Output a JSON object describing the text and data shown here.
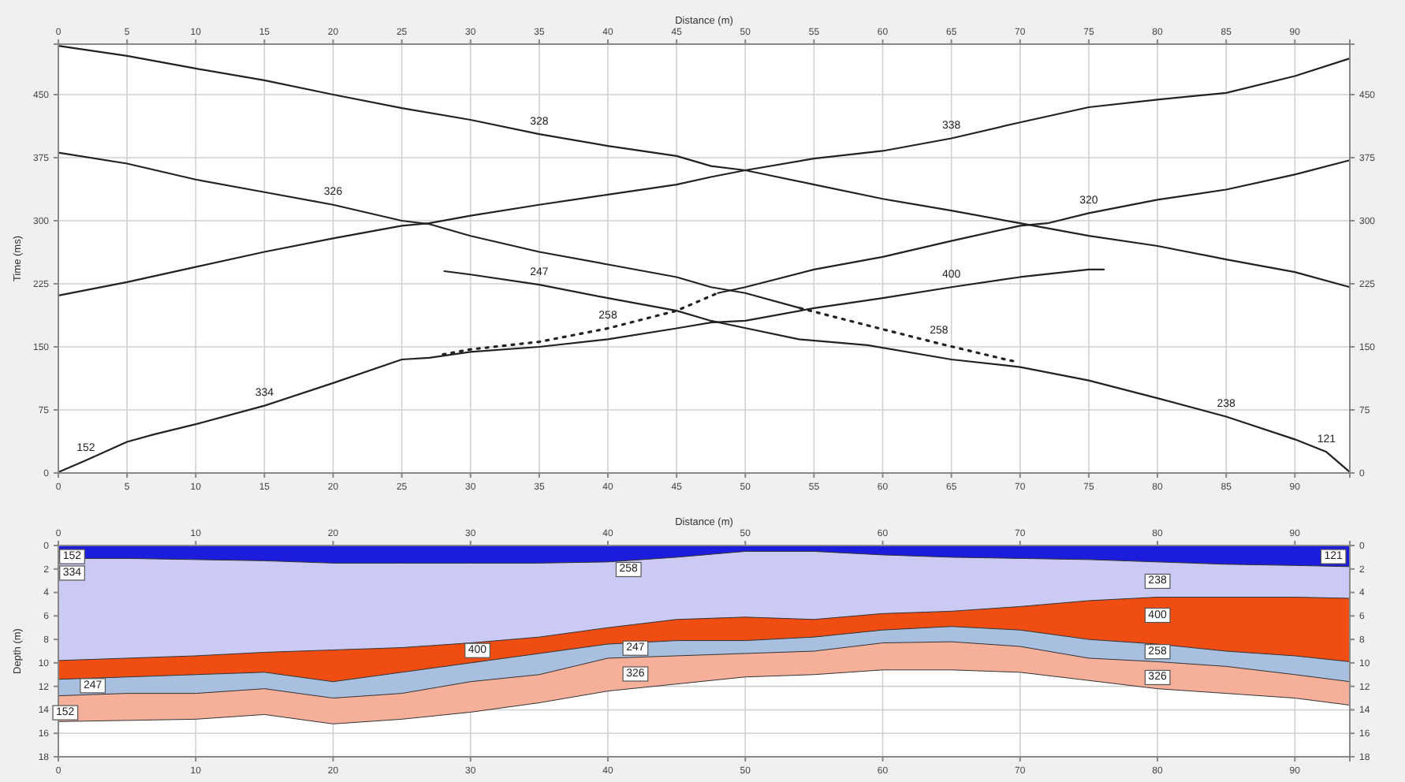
{
  "chart_data": [
    {
      "type": "line",
      "x2label": "Distance (m)",
      "ylabel": "Time (ms)",
      "xlim": [
        0,
        94
      ],
      "xticks": [
        0,
        5,
        10,
        15,
        20,
        25,
        30,
        35,
        40,
        45,
        50,
        55,
        60,
        65,
        70,
        75,
        80,
        85,
        90
      ],
      "x2lim": [
        0,
        94
      ],
      "x2ticks": [
        0,
        5,
        10,
        15,
        20,
        25,
        30,
        35,
        40,
        45,
        50,
        55,
        60,
        65,
        70,
        75,
        80,
        85,
        90
      ],
      "ylim": [
        0,
        510
      ],
      "yticks": [
        0,
        75,
        150,
        225,
        300,
        375,
        450
      ],
      "y2lim": [
        0,
        510
      ],
      "y2ticks": [
        0,
        75,
        150,
        225,
        300,
        375,
        450
      ],
      "grid": true,
      "line_style": "solid",
      "series": [
        {
          "color": "#222222",
          "x": [
            0,
            5,
            10,
            15,
            20,
            25,
            30,
            35,
            40,
            45,
            47.5,
            50,
            55,
            60,
            65,
            70,
            75,
            80,
            85,
            90,
            94
          ],
          "values": [
            508,
            496,
            481,
            467,
            450,
            434,
            420,
            403,
            389,
            377,
            365,
            360,
            343,
            326,
            312,
            297,
            282,
            270,
            254,
            239,
            221
          ]
        },
        {
          "color": "#222222",
          "x": [
            0,
            5,
            10,
            15,
            20,
            25,
            27,
            30,
            35,
            40,
            45,
            47.5,
            50,
            55,
            60,
            65,
            70,
            75,
            80,
            85,
            90,
            94
          ],
          "values": [
            211,
            227,
            245,
            263,
            279,
            294,
            297,
            306,
            319,
            331,
            343,
            352,
            360,
            374,
            383,
            398,
            417,
            435,
            444,
            452,
            472,
            493
          ]
        },
        {
          "color": "#222222",
          "x": [
            0,
            5,
            10,
            15,
            20,
            25,
            27,
            30,
            35,
            40,
            45,
            47.5,
            50,
            54
          ],
          "values": [
            381,
            368,
            349,
            334,
            319,
            300,
            296,
            282,
            263,
            248,
            233,
            221,
            214,
            196
          ]
        },
        {
          "color": "#222222",
          "line_style": "dotted",
          "x": [
            54,
            59.5,
            64.1,
            68.7,
            69.8
          ],
          "values": [
            196,
            173,
            154,
            136,
            132
          ]
        },
        {
          "color": "#222222",
          "x": [
            28.1,
            30,
            35,
            40,
            45,
            47.5,
            50.1,
            53.9,
            58.9,
            65,
            70,
            75,
            80,
            85,
            90,
            92.3,
            94
          ],
          "values": [
            240,
            236,
            224,
            208,
            193,
            181,
            172,
            159,
            152,
            135,
            126,
            110,
            89,
            67,
            40,
            25,
            1
          ]
        },
        {
          "color": "#222222",
          "x": [
            0,
            2,
            5,
            7,
            10,
            15,
            20,
            25,
            27,
            30,
            35,
            40,
            45,
            47.5,
            50,
            55,
            60,
            65,
            70,
            75,
            76.1
          ],
          "values": [
            1,
            15,
            37,
            46,
            58,
            80,
            107,
            135,
            137,
            144,
            150,
            159,
            172,
            179,
            181,
            196,
            208,
            221,
            233,
            242,
            242
          ]
        },
        {
          "color": "#222222",
          "line_style": "dotted",
          "x": [
            28,
            30,
            35,
            40,
            45,
            48
          ],
          "values": [
            141,
            147,
            156,
            172,
            193,
            214
          ]
        },
        {
          "color": "#222222",
          "x": [
            48,
            50,
            55,
            60,
            65,
            70,
            72,
            75,
            80,
            85,
            90,
            94
          ],
          "values": [
            214,
            221,
            242,
            257,
            276,
            294,
            297,
            309,
            325,
            337,
            355,
            372
          ]
        }
      ],
      "annotations": [
        {
          "text": "328",
          "x": 35,
          "y": 403
        },
        {
          "text": "326",
          "x": 20,
          "y": 319
        },
        {
          "text": "247",
          "x": 35,
          "y": 224
        },
        {
          "text": "258",
          "x": 40,
          "y": 172
        },
        {
          "text": "334",
          "x": 15,
          "y": 80
        },
        {
          "text": "152",
          "x": 2,
          "y": 15
        },
        {
          "text": "338",
          "x": 65,
          "y": 398
        },
        {
          "text": "320",
          "x": 75,
          "y": 309
        },
        {
          "text": "400",
          "x": 65,
          "y": 221
        },
        {
          "text": "258",
          "x": 64.1,
          "y": 154
        },
        {
          "text": "238",
          "x": 85,
          "y": 67
        },
        {
          "text": "121",
          "x": 92.3,
          "y": 25
        }
      ]
    },
    {
      "type": "area",
      "x2label": "Distance (m)",
      "ylabel": "Depth (m)",
      "xlim": [
        0,
        94
      ],
      "xticks": [
        0,
        10,
        20,
        30,
        40,
        50,
        60,
        70,
        80,
        90
      ],
      "x2lim": [
        0,
        94
      ],
      "x2ticks": [
        0,
        10,
        20,
        30,
        40,
        50,
        60,
        70,
        80,
        90
      ],
      "ylim": [
        18,
        0
      ],
      "yticks": [
        0,
        2,
        4,
        6,
        8,
        10,
        12,
        14,
        16,
        18
      ],
      "y2lim": [
        18,
        0
      ],
      "y2ticks": [
        0,
        2,
        4,
        6,
        8,
        10,
        12,
        14,
        16,
        18
      ],
      "grid": true,
      "x": [
        0,
        5,
        10,
        15,
        20,
        25,
        30,
        35,
        40,
        45,
        50,
        55,
        60,
        65,
        70,
        75,
        80,
        85,
        90,
        94
      ],
      "series": [
        {
          "color": "#f6b09a",
          "values": [
            15.0,
            14.9,
            14.8,
            14.4,
            15.2,
            14.8,
            14.2,
            13.4,
            12.4,
            11.8,
            11.2,
            11.0,
            10.6,
            10.6,
            10.8,
            11.5,
            12.2,
            12.6,
            13.0,
            13.6
          ]
        },
        {
          "color": "#a9bfe0",
          "values": [
            12.8,
            12.6,
            12.6,
            12.2,
            13.0,
            12.6,
            11.6,
            11.0,
            9.6,
            9.4,
            9.2,
            9.0,
            8.3,
            8.2,
            8.6,
            9.6,
            9.9,
            10.3,
            11.0,
            11.6
          ]
        },
        {
          "color": "#f04d12",
          "values": [
            11.4,
            11.2,
            11.0,
            10.8,
            11.6,
            10.8,
            10.0,
            9.2,
            8.4,
            8.1,
            8.1,
            7.8,
            7.2,
            6.9,
            7.2,
            8.0,
            8.4,
            9.0,
            9.4,
            9.9
          ]
        },
        {
          "color": "#cacaf4",
          "values": [
            9.8,
            9.6,
            9.4,
            9.1,
            8.9,
            8.7,
            8.3,
            7.8,
            7.0,
            6.3,
            6.1,
            6.3,
            5.8,
            5.6,
            5.2,
            4.7,
            4.4,
            4.4,
            4.4,
            4.5
          ]
        },
        {
          "color": "#1c1cdc",
          "values": [
            1.1,
            1.1,
            1.2,
            1.3,
            1.5,
            1.5,
            1.5,
            1.5,
            1.4,
            1.0,
            0.5,
            0.5,
            0.8,
            1.0,
            1.1,
            1.2,
            1.4,
            1.6,
            1.7,
            1.8
          ]
        }
      ],
      "annotations": [
        {
          "text": "152",
          "x": 1,
          "y": 0.9
        },
        {
          "text": "121",
          "x": 92.8,
          "y": 0.9
        },
        {
          "text": "334",
          "x": 1,
          "y": 2.3
        },
        {
          "text": "258",
          "x": 41.5,
          "y": 2.0
        },
        {
          "text": "238",
          "x": 80,
          "y": 3.0
        },
        {
          "text": "400",
          "x": 30.5,
          "y": 8.9
        },
        {
          "text": "400",
          "x": 80,
          "y": 5.9
        },
        {
          "text": "247",
          "x": 42,
          "y": 8.7
        },
        {
          "text": "258",
          "x": 80,
          "y": 9.0
        },
        {
          "text": "247",
          "x": 2.5,
          "y": 11.9
        },
        {
          "text": "326",
          "x": 42,
          "y": 10.9
        },
        {
          "text": "326",
          "x": 80,
          "y": 11.2
        },
        {
          "text": "152",
          "x": 0.5,
          "y": 14.2
        }
      ]
    }
  ]
}
